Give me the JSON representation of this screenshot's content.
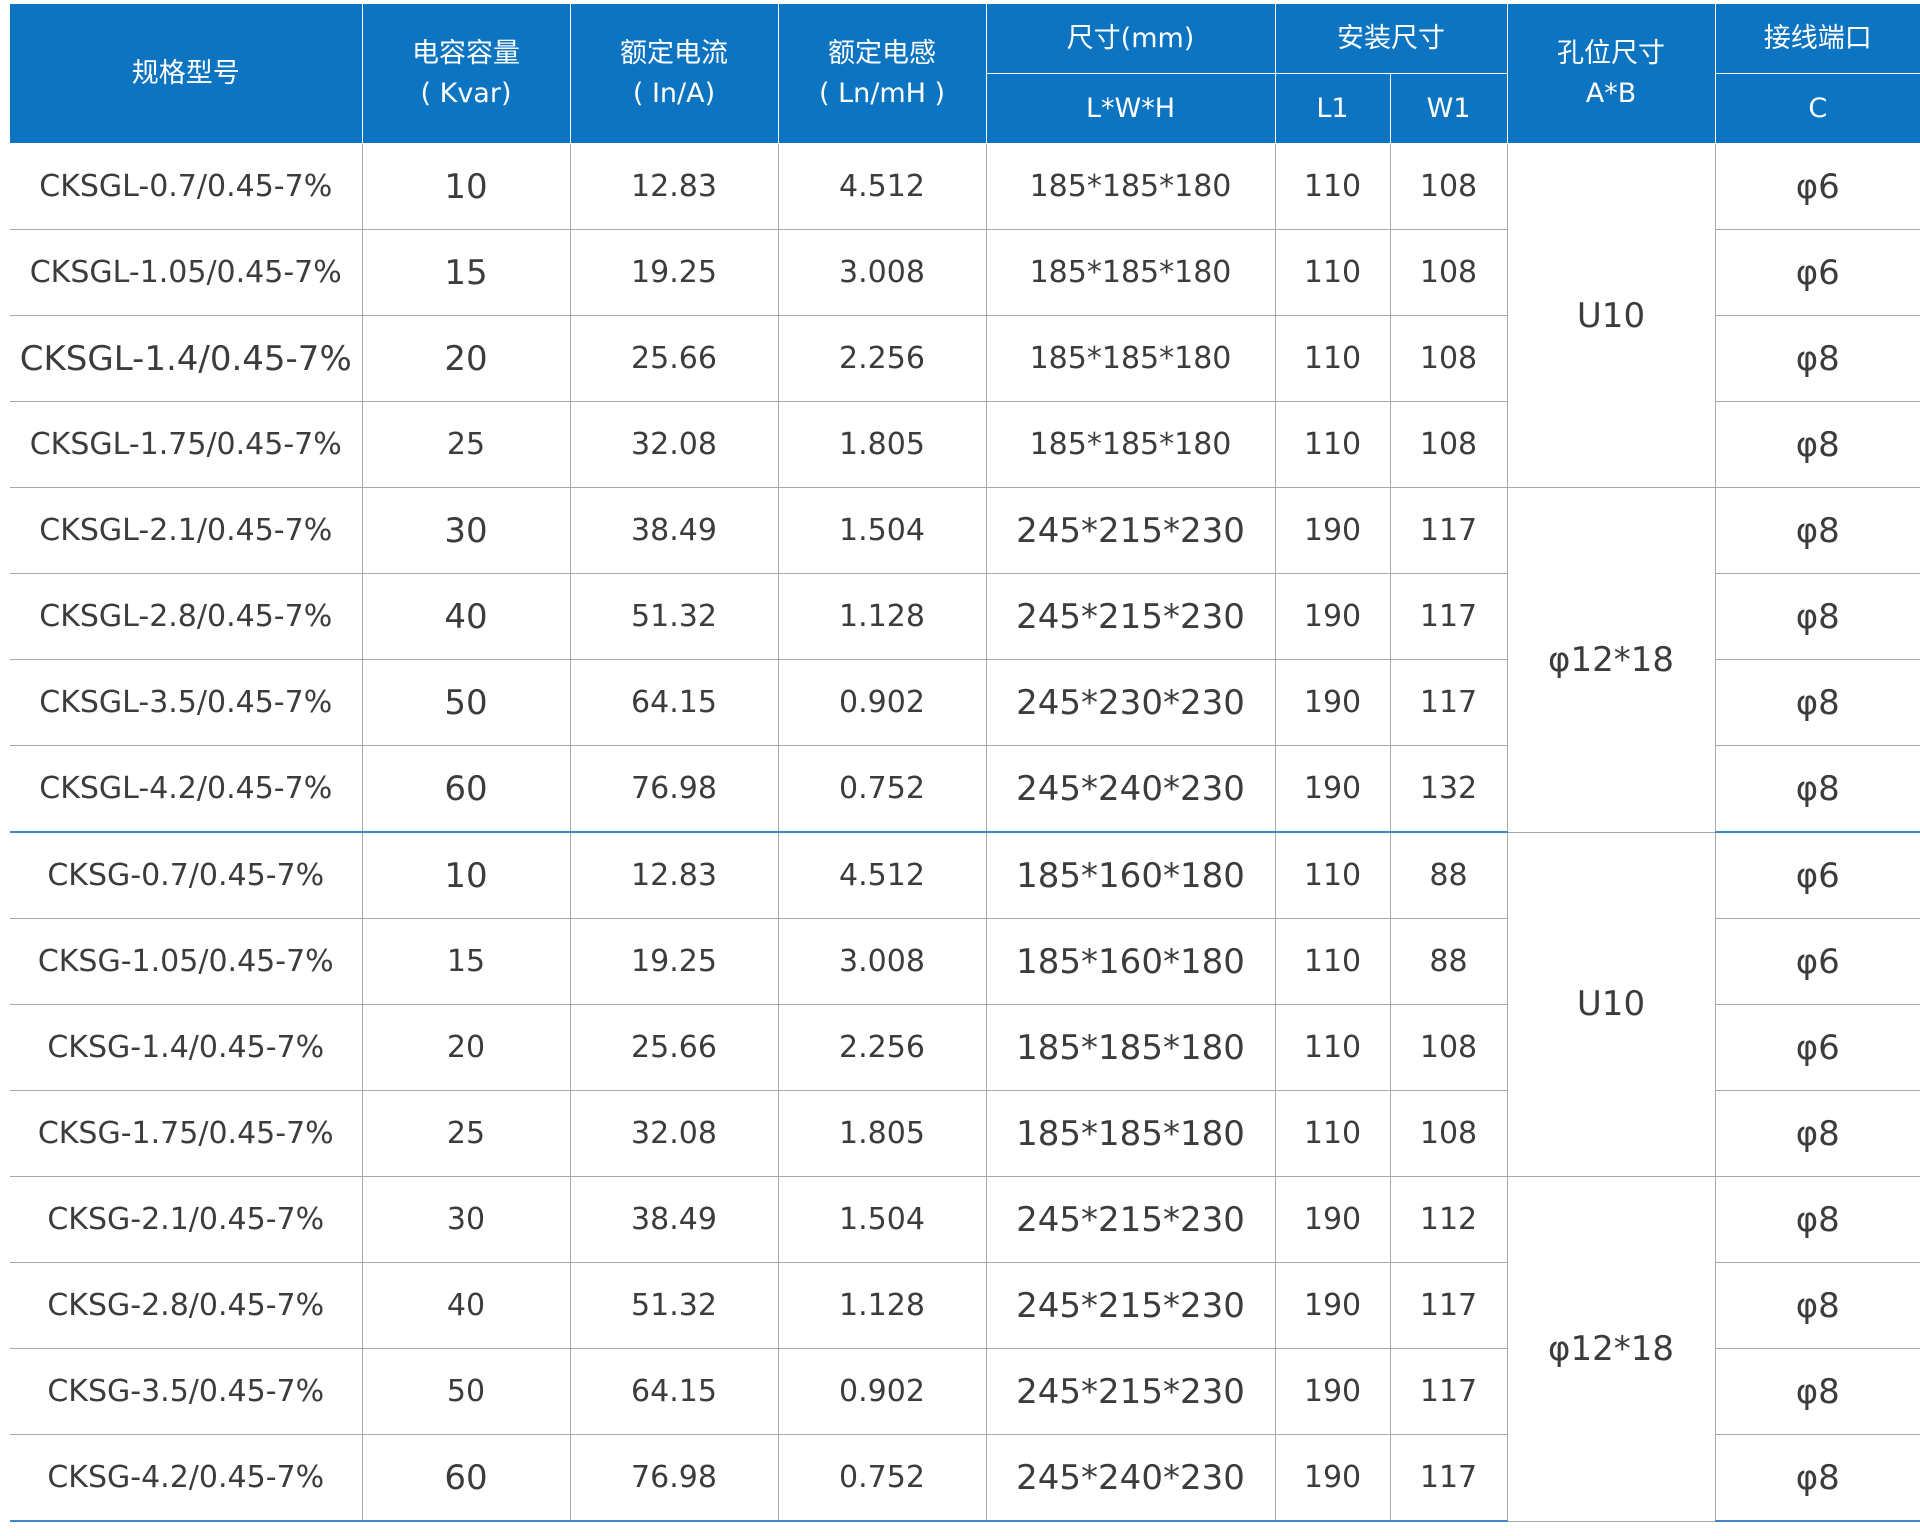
{
  "header": {
    "model": "规格型号",
    "capacity": "电容容量",
    "capacity_unit": "( Kvar)",
    "current": "额定电流",
    "current_unit": "( In/A)",
    "inductance": "额定电感",
    "inductance_unit": "( Ln/mH )",
    "size": "尺寸(mm)",
    "size_sub": "L*W*H",
    "mount": "安装尺寸",
    "mount_l1": "L1",
    "mount_w1": "W1",
    "hole": "孔位尺寸",
    "hole_sub": "A*B",
    "terminal": "接线端口",
    "terminal_sub": "C"
  },
  "groups": [
    {
      "hole": "U10"
    },
    {
      "hole": "φ12*18"
    },
    {
      "hole": "U10"
    },
    {
      "hole": "φ12*18"
    }
  ],
  "rows": [
    {
      "model": "CKSGL-0.7/0.45-7%",
      "capacity": "10",
      "current": "12.83",
      "inductance": "4.512",
      "size": "185*185*180",
      "l1": "110",
      "w1": "108",
      "terminal": "φ6"
    },
    {
      "model": "CKSGL-1.05/0.45-7%",
      "capacity": "15",
      "current": "19.25",
      "inductance": "3.008",
      "size": "185*185*180",
      "l1": "110",
      "w1": "108",
      "terminal": "φ6"
    },
    {
      "model": "CKSGL-1.4/0.45-7%",
      "capacity": "20",
      "current": "25.66",
      "inductance": "2.256",
      "size": "185*185*180",
      "l1": "110",
      "w1": "108",
      "terminal": "φ8"
    },
    {
      "model": "CKSGL-1.75/0.45-7%",
      "capacity": "25",
      "current": "32.08",
      "inductance": "1.805",
      "size": "185*185*180",
      "l1": "110",
      "w1": "108",
      "terminal": "φ8"
    },
    {
      "model": "CKSGL-2.1/0.45-7%",
      "capacity": "30",
      "current": "38.49",
      "inductance": "1.504",
      "size": "245*215*230",
      "l1": "190",
      "w1": "117",
      "terminal": "φ8"
    },
    {
      "model": "CKSGL-2.8/0.45-7%",
      "capacity": "40",
      "current": "51.32",
      "inductance": "1.128",
      "size": "245*215*230",
      "l1": "190",
      "w1": "117",
      "terminal": "φ8"
    },
    {
      "model": "CKSGL-3.5/0.45-7%",
      "capacity": "50",
      "current": "64.15",
      "inductance": "0.902",
      "size": "245*230*230",
      "l1": "190",
      "w1": "117",
      "terminal": "φ8"
    },
    {
      "model": "CKSGL-4.2/0.45-7%",
      "capacity": "60",
      "current": "76.98",
      "inductance": "0.752",
      "size": "245*240*230",
      "l1": "190",
      "w1": "132",
      "terminal": "φ8"
    },
    {
      "model": "CKSG-0.7/0.45-7%",
      "capacity": "10",
      "current": "12.83",
      "inductance": "4.512",
      "size": "185*160*180",
      "l1": "110",
      "w1": "88",
      "terminal": "φ6"
    },
    {
      "model": "CKSG-1.05/0.45-7%",
      "capacity": "15",
      "current": "19.25",
      "inductance": "3.008",
      "size": "185*160*180",
      "l1": "110",
      "w1": "88",
      "terminal": "φ6"
    },
    {
      "model": "CKSG-1.4/0.45-7%",
      "capacity": "20",
      "current": "25.66",
      "inductance": "2.256",
      "size": "185*185*180",
      "l1": "110",
      "w1": "108",
      "terminal": "φ6"
    },
    {
      "model": "CKSG-1.75/0.45-7%",
      "capacity": "25",
      "current": "32.08",
      "inductance": "1.805",
      "size": "185*185*180",
      "l1": "110",
      "w1": "108",
      "terminal": "φ8"
    },
    {
      "model": "CKSG-2.1/0.45-7%",
      "capacity": "30",
      "current": "38.49",
      "inductance": "1.504",
      "size": "245*215*230",
      "l1": "190",
      "w1": "112",
      "terminal": "φ8"
    },
    {
      "model": "CKSG-2.8/0.45-7%",
      "capacity": "40",
      "current": "51.32",
      "inductance": "1.128",
      "size": "245*215*230",
      "l1": "190",
      "w1": "117",
      "terminal": "φ8"
    },
    {
      "model": "CKSG-3.5/0.45-7%",
      "capacity": "50",
      "current": "64.15",
      "inductance": "0.902",
      "size": "245*215*230",
      "l1": "190",
      "w1": "117",
      "terminal": "φ8"
    },
    {
      "model": "CKSG-4.2/0.45-7%",
      "capacity": "60",
      "current": "76.98",
      "inductance": "0.752",
      "size": "245*240*230",
      "l1": "190",
      "w1": "117",
      "terminal": "φ8"
    }
  ]
}
